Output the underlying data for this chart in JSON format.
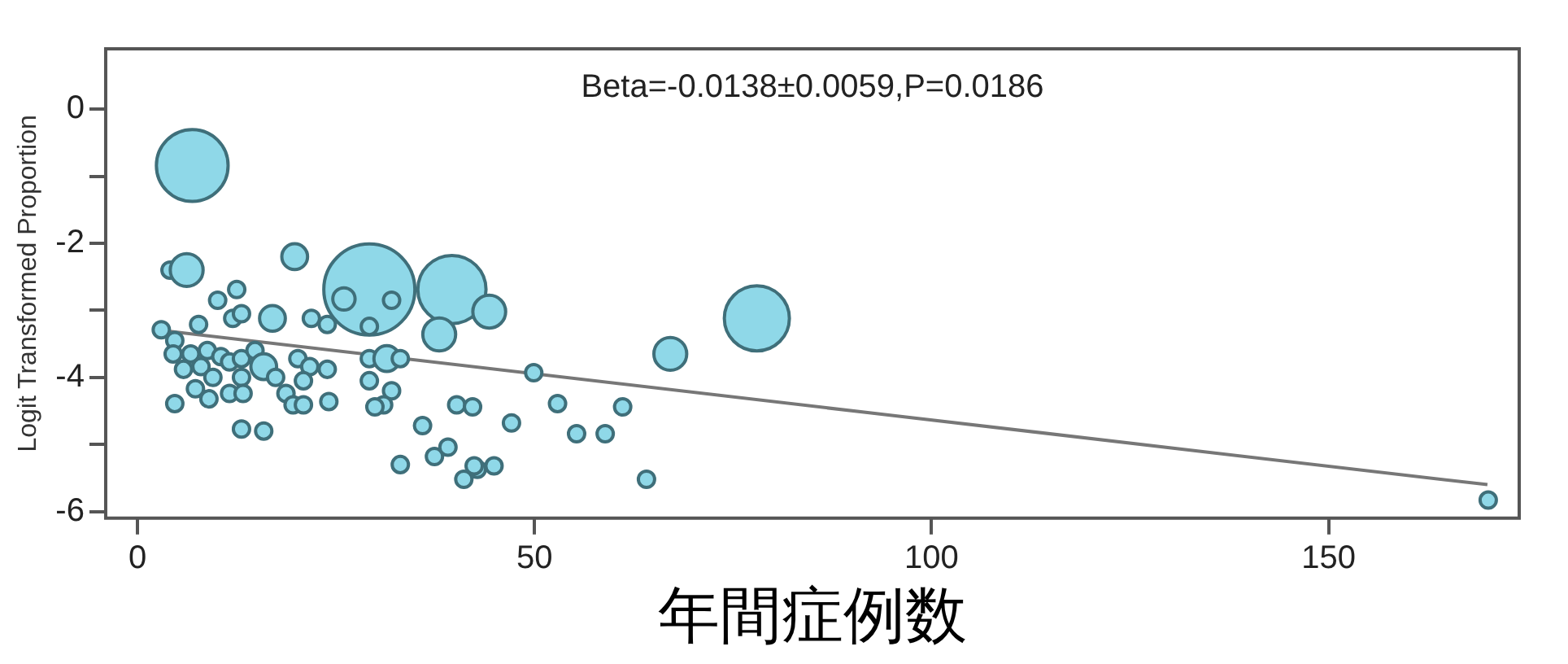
{
  "chart_data": {
    "type": "bubble",
    "xlabel": "年間症例数",
    "ylabel": "Logit Transformed Proportion",
    "annotations": [
      "Beta=-0.0138±0.0059,P=0.0186"
    ],
    "xlim": [
      -4,
      174
    ],
    "ylim": [
      -6.1,
      0.9
    ],
    "xticks": [
      0,
      50,
      100,
      150
    ],
    "yticks": [
      -6,
      {
        "value": -5,
        "label": null
      },
      -4,
      {
        "value": -3,
        "label": null
      },
      -2,
      {
        "value": -1,
        "label": null
      },
      0
    ],
    "grid": false,
    "legend": false,
    "series": [
      {
        "color": "#8fd8e8",
        "x": [
          6.9,
          4.1,
          6.2,
          19.8,
          29.2,
          26,
          32,
          29.2,
          39.6,
          38,
          44.3,
          3.0,
          10.1,
          12.5,
          12.0,
          13.1,
          17.0,
          21.9,
          23.9,
          4.7,
          7.7,
          4.5,
          6.7,
          8.8,
          10.5,
          5.8,
          8.0,
          9.5,
          11.6,
          13.1,
          14.8,
          15.9,
          17.4,
          13.1,
          7.3,
          9.0,
          4.7,
          11.6,
          13.3,
          20.2,
          21.7,
          23.9,
          20.9,
          18.7,
          19.6,
          20.9,
          24.1,
          13.1,
          15.9,
          29.2,
          31.4,
          33.1,
          29.2,
          32,
          31,
          29.9,
          35.9,
          33.1,
          37.4,
          39.1,
          40.2,
          42.2,
          41.1,
          42.8,
          49.9,
          52.9,
          61.1,
          47.1,
          55.3,
          58.9,
          42.4,
          44.9,
          64.1,
          67.1,
          78,
          170.1
        ],
        "values": [
          -0.84,
          -2.4,
          -2.4,
          -2.2,
          -2.69,
          -2.83,
          -2.85,
          -3.24,
          -2.69,
          -3.36,
          -3.02,
          -3.29,
          -2.85,
          -2.69,
          -3.12,
          -3.05,
          -3.12,
          -3.12,
          -3.21,
          -3.45,
          -3.21,
          -3.65,
          -3.65,
          -3.6,
          -3.69,
          -3.88,
          -3.84,
          -4.0,
          -3.77,
          -3.72,
          -3.6,
          -3.84,
          -4.0,
          -4.0,
          -4.17,
          -4.32,
          -4.39,
          -4.24,
          -4.24,
          -3.72,
          -3.84,
          -3.88,
          -4.05,
          -4.24,
          -4.41,
          -4.41,
          -4.36,
          -4.77,
          -4.8,
          -3.72,
          -3.72,
          -3.72,
          -4.05,
          -4.2,
          -4.41,
          -4.44,
          -4.72,
          -5.3,
          -5.18,
          -5.04,
          -4.41,
          -4.44,
          -5.52,
          -5.37,
          -3.93,
          -4.39,
          -4.44,
          -4.68,
          -4.84,
          -4.84,
          -5.32,
          -5.32,
          -5.52,
          -3.65,
          -3.12,
          -5.83
        ],
        "sizes": [
          0.62,
          0.032,
          0.13,
          0.08,
          1,
          0.06,
          0.032,
          0.032,
          0.56,
          0.13,
          0.13,
          0.032,
          0.032,
          0.032,
          0.032,
          0.032,
          0.08,
          0.032,
          0.032,
          0.032,
          0.032,
          0.032,
          0.032,
          0.032,
          0.032,
          0.032,
          0.032,
          0.032,
          0.032,
          0.032,
          0.032,
          0.08,
          0.032,
          0.032,
          0.032,
          0.032,
          0.032,
          0.032,
          0.032,
          0.032,
          0.032,
          0.032,
          0.032,
          0.032,
          0.032,
          0.032,
          0.032,
          0.032,
          0.032,
          0.032,
          0.08,
          0.032,
          0.032,
          0.032,
          0.032,
          0.032,
          0.032,
          0.032,
          0.032,
          0.032,
          0.032,
          0.032,
          0.032,
          0.032,
          0.032,
          0.032,
          0.032,
          0.032,
          0.032,
          0.032,
          0.032,
          0.032,
          0.032,
          0.13,
          0.51,
          0.032
        ]
      },
      {
        "type": "line",
        "color": "#777777",
        "marker": "none",
        "line_style": "solid",
        "x": [
          3,
          170
        ],
        "values": [
          -3.3,
          -5.6
        ]
      }
    ]
  }
}
